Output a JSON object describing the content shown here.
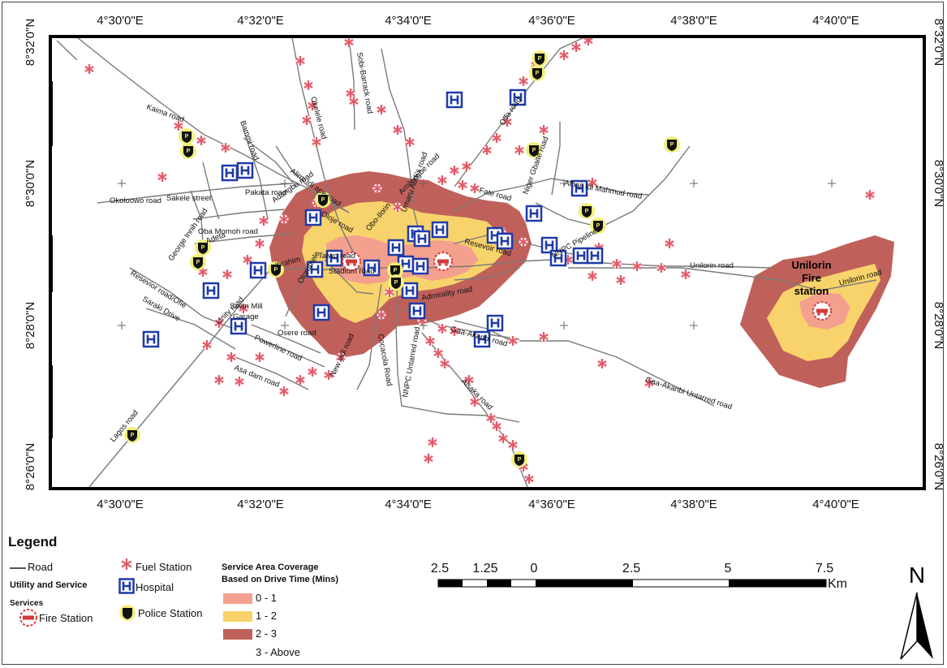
{
  "colors": {
    "zone_0_1": "#f4a08e",
    "zone_1_2": "#f8d36b",
    "zone_2_3": "#c0605a",
    "road": "#7a7a7a",
    "fuel": "#e05a6a",
    "hospital": "#1f3aa8",
    "police_bg": "#f1ef7a"
  },
  "grid": {
    "x_ticks": [
      "4°30'0\"E",
      "4°32'0\"E",
      "4°34'0\"E",
      "4°36'0\"E",
      "4°38'0\"E",
      "4°40'0\"E"
    ],
    "y_ticks": [
      "8°32'0\"N",
      "8°30'0\"N",
      "8°28'0\"N",
      "8°26'0\"N"
    ]
  },
  "road_labels": [
    "Kaima road",
    "Okelele road",
    "Sobi-Barrack road",
    "Bammi road",
    "Adangba road",
    "Alimi-Idi ape road",
    "Okoloowo road",
    "Sakele street",
    "Pakata road",
    "Oba Momoh road",
    "George Innih road",
    "Resevior road/Ofie",
    "Saraki Drive",
    "Unity road",
    "Sawn Mill",
    "Garage",
    "Osere road",
    "Powerline road",
    "New yidi road",
    "Asa dam road",
    "Taiwo road",
    "Stadium road",
    "Ibrahim",
    "Cocacola Road",
    "NNPC Untarred road",
    "Admirality road",
    "Umaru Audi's road",
    "Amilengbe road",
    "Resevoir road",
    "Fate road",
    "Alhaji Idi Mahmud road",
    "Gaa-Akanbi road",
    "Alsaka road",
    "NNPC Pipeline",
    "Unilorin road",
    "Gaa-Akanbi Untarred road",
    "Lagos road",
    "Offa road",
    "Oloje road",
    "Adeta",
    "Obo-Ilorin",
    "Unilorin road",
    "Niger Gbaite road",
    "Oloruntele"
  ],
  "places": {
    "unilorin_station": [
      "Unilorin",
      "Fire",
      "station"
    ]
  },
  "legend": {
    "title": "Legend",
    "road": "Road",
    "utility_heading": [
      "Utility and Service",
      "Services"
    ],
    "fire_station": "Fire Station",
    "fuel_station": "Fuel Station",
    "hospital": "Hospital",
    "police_station": "Police Station",
    "coverage_heading": [
      "Service Area Coverage",
      "Based on Drive Time (Mins)"
    ],
    "zones": [
      "0 - 1",
      "1 - 2",
      "2 - 3",
      "3 - Above"
    ]
  },
  "scale_bar": {
    "labels": [
      "2.5",
      "1.25",
      "0",
      "2.5",
      "5",
      "7.5"
    ],
    "unit": "Km"
  },
  "north_arrow": {
    "label": "N"
  },
  "icons": {
    "fuel": "asterisk-icon",
    "hospital": "hospital-h-icon",
    "police": "police-badge-icon",
    "fire": "fire-station-icon"
  }
}
